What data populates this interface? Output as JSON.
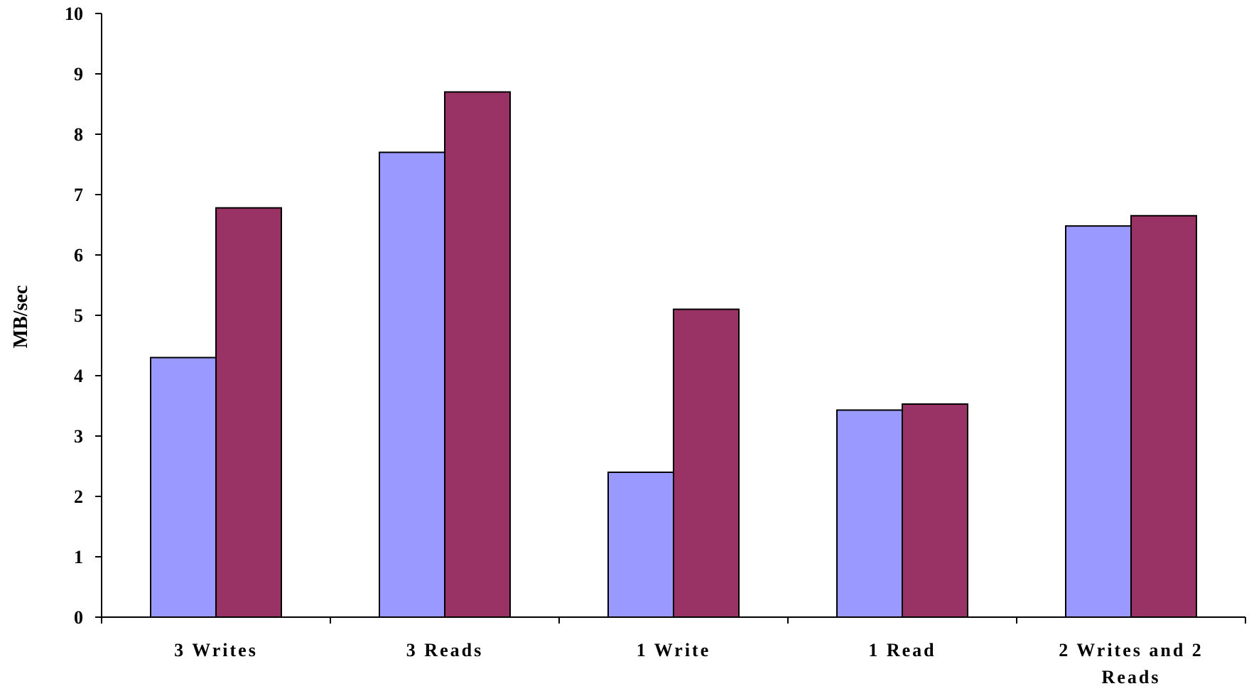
{
  "chart_data": {
    "type": "bar",
    "title": "",
    "xlabel": "",
    "ylabel": "MB/sec",
    "ylim": [
      0,
      10
    ],
    "yticks": [
      "0",
      "1",
      "2",
      "3",
      "4",
      "5",
      "6",
      "7",
      "8",
      "9",
      "10"
    ],
    "grid": false,
    "legend": "none",
    "categories": [
      [
        "3 Writes"
      ],
      [
        "3 Reads"
      ],
      [
        "1 Write"
      ],
      [
        "1 Read"
      ],
      [
        "2 Writes and 2",
        "Reads"
      ]
    ],
    "series": [
      {
        "color": "#9999ff",
        "values": [
          4.3,
          7.7,
          2.4,
          3.43,
          6.48
        ]
      },
      {
        "color": "#993366",
        "values": [
          6.78,
          8.7,
          5.1,
          3.53,
          6.65
        ]
      }
    ]
  }
}
